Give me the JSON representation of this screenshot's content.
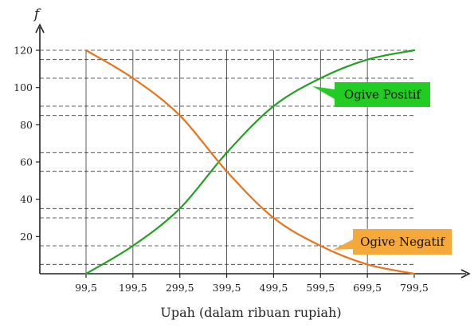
{
  "chart_data": {
    "type": "line",
    "ylabel": "f",
    "xlabel": "Upah (dalam ribuan rupiah)",
    "x_ticks": [
      "99,5",
      "199,5",
      "299,5",
      "399,5",
      "499,5",
      "599,5",
      "699,5",
      "799,5"
    ],
    "x_values": [
      99.5,
      199.5,
      299.5,
      399.5,
      499.5,
      599.5,
      699.5,
      799.5
    ],
    "y_ticks": [
      20,
      40,
      60,
      80,
      100,
      120
    ],
    "ylim": [
      0,
      120
    ],
    "xlim": [
      99.5,
      799.5
    ],
    "dashed_reference_levels": [
      5,
      15,
      30,
      35,
      55,
      65,
      85,
      90,
      105,
      115,
      120
    ],
    "series": [
      {
        "name": "Ogive Positif",
        "color": "#22a022",
        "values": [
          0,
          15,
          35,
          65,
          90,
          105,
          115,
          120
        ]
      },
      {
        "name": "Ogive Negatif",
        "color": "#e8731a",
        "values": [
          120,
          105,
          85,
          55,
          30,
          15,
          5,
          0
        ]
      }
    ],
    "callouts": [
      {
        "label": "Ogive Positif",
        "series": 0,
        "bg": "#22cc22"
      },
      {
        "label": "Ogive Negatif",
        "series": 1,
        "bg": "#f6a93b"
      }
    ]
  }
}
